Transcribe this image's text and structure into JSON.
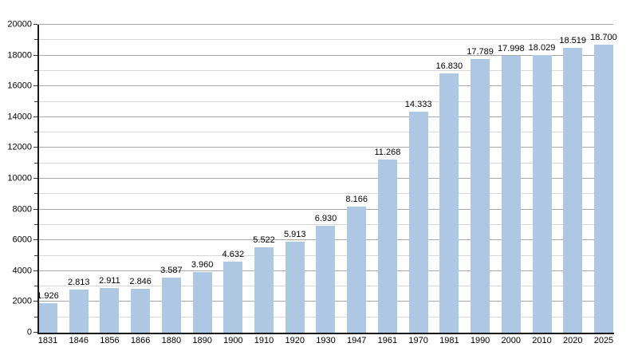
{
  "chart_data": {
    "type": "bar",
    "title": "",
    "xlabel": "",
    "ylabel": "",
    "categories": [
      "1831",
      "1846",
      "1856",
      "1866",
      "1880",
      "1890",
      "1900",
      "1910",
      "1920",
      "1930",
      "1947",
      "1961",
      "1970",
      "1981",
      "1990",
      "2000",
      "2010",
      "2020",
      "2025"
    ],
    "values": [
      1926,
      2813,
      2911,
      2846,
      3587,
      3960,
      4632,
      5522,
      5913,
      6930,
      8166,
      11268,
      14333,
      16830,
      17789,
      17998,
      18029,
      18519,
      18700
    ],
    "bar_labels": [
      "1.926",
      "2.813",
      "2.911",
      "2.846",
      "3.587",
      "3.960",
      "4.632",
      "5.522",
      "5.913",
      "6.930",
      "8.166",
      "11.268",
      "14.333",
      "16.830",
      "17.789",
      "17.998",
      "18.029",
      "18.519",
      "18.700"
    ],
    "ylim": [
      0,
      20000
    ],
    "y_major_step": 2000,
    "y_minor_step": 1000,
    "y_tick_labels": [
      "0",
      "2000",
      "4000",
      "6000",
      "8000",
      "10000",
      "12000",
      "14000",
      "16000",
      "18000",
      "20000"
    ],
    "grid": "horizontal-major-and-minor",
    "legend": "none"
  },
  "colors": {
    "background": "#ffffff",
    "bar_fill": "#aec8e4",
    "major_grid": "#a8a8a8",
    "minor_grid": "#d8d8d8",
    "axis": "#1a1a1a",
    "tick": "#333333",
    "text": "#000000"
  }
}
